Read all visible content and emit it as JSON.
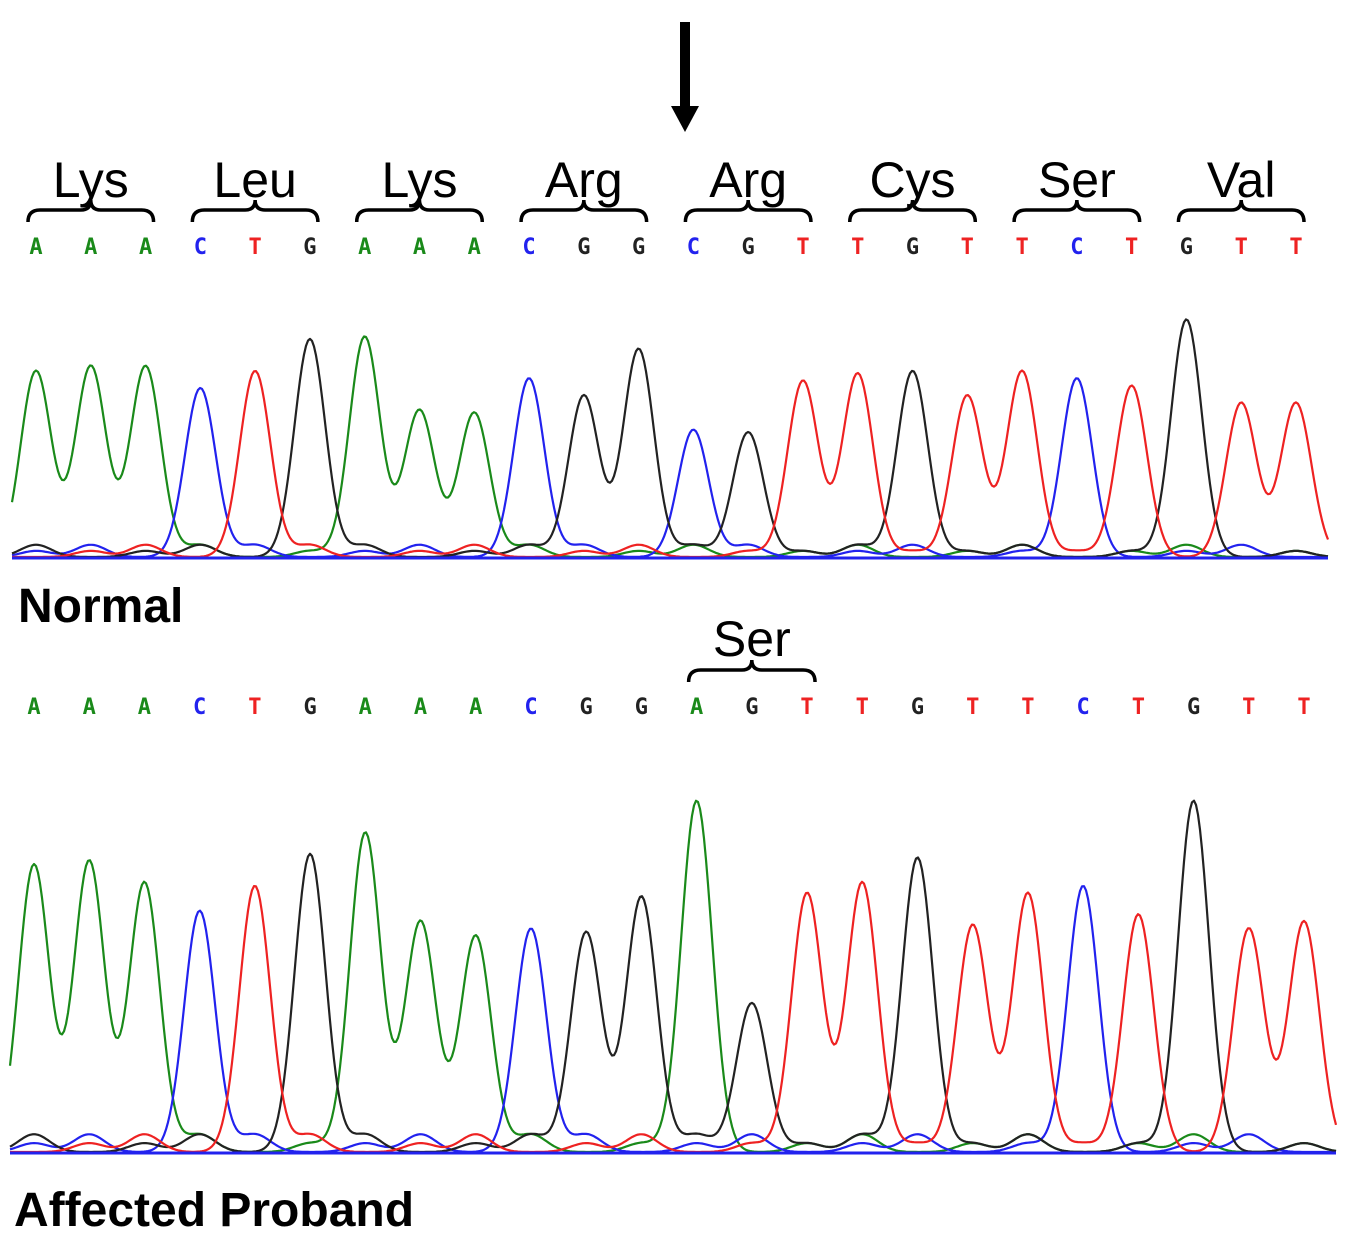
{
  "chart_data": {
    "type": "line",
    "title": "",
    "description": "Sanger sequencing chromatograms comparing normal and affected proband; C>A substitution converts Arg (CGT) to Ser (AGT)",
    "base_colors": {
      "A": "#1a8a1a",
      "C": "#2222ee",
      "G": "#222222",
      "T": "#ee2222"
    },
    "mutation_marker": {
      "icon": "down-arrow-icon",
      "codon_index": 4
    },
    "panels": [
      {
        "label": "Normal",
        "codons": [
          {
            "amino_acid": "Lys",
            "bases": "AAA"
          },
          {
            "amino_acid": "Leu",
            "bases": "CTG"
          },
          {
            "amino_acid": "Lys",
            "bases": "AAA"
          },
          {
            "amino_acid": "Arg",
            "bases": "CGG"
          },
          {
            "amino_acid": "Arg",
            "bases": "CGT"
          },
          {
            "amino_acid": "Cys",
            "bases": "TGT"
          },
          {
            "amino_acid": "Ser",
            "bases": "TCT"
          },
          {
            "amino_acid": "Val",
            "bases": "GTT"
          }
        ],
        "sequence": [
          "A",
          "A",
          "A",
          "C",
          "T",
          "G",
          "A",
          "A",
          "A",
          "C",
          "G",
          "G",
          "C",
          "G",
          "T",
          "T",
          "G",
          "T",
          "T",
          "C",
          "T",
          "G",
          "T",
          "T"
        ],
        "peak_heights": [
          0.76,
          0.78,
          0.78,
          0.69,
          0.76,
          0.89,
          0.9,
          0.6,
          0.59,
          0.73,
          0.66,
          0.85,
          0.52,
          0.51,
          0.72,
          0.75,
          0.76,
          0.66,
          0.76,
          0.73,
          0.7,
          0.97,
          0.63,
          0.63
        ]
      },
      {
        "label": "Affected Proband",
        "codons": [
          {
            "amino_acid": "Ser",
            "bases": "AGT",
            "codon_index": 4
          }
        ],
        "sequence": [
          "A",
          "A",
          "A",
          "C",
          "T",
          "G",
          "A",
          "A",
          "A",
          "C",
          "G",
          "G",
          "A",
          "G",
          "T",
          "T",
          "G",
          "T",
          "T",
          "C",
          "T",
          "G",
          "T",
          "T"
        ],
        "peak_heights": [
          0.81,
          0.82,
          0.76,
          0.68,
          0.75,
          0.84,
          0.9,
          0.65,
          0.61,
          0.63,
          0.62,
          0.72,
          0.99,
          0.42,
          0.73,
          0.76,
          0.83,
          0.64,
          0.73,
          0.75,
          0.67,
          0.99,
          0.63,
          0.65
        ]
      }
    ],
    "xlabel": "",
    "ylabel": "",
    "grid": false,
    "legend": "none"
  }
}
